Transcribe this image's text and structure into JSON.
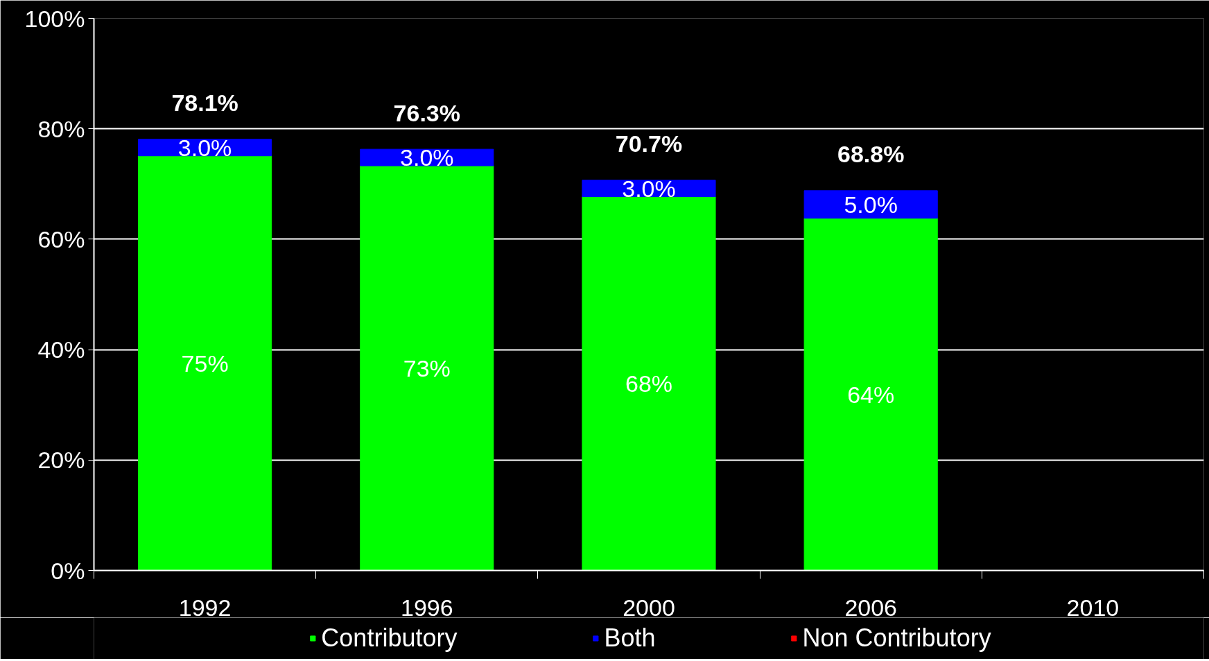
{
  "chart_data": {
    "type": "bar",
    "stacked": true,
    "categories": [
      "1992",
      "1996",
      "2000",
      "2006",
      "2010"
    ],
    "series": [
      {
        "name": "Contributory",
        "color": "#00ff00",
        "values": [
          75.1,
          73.3,
          67.7,
          63.8,
          null
        ],
        "value_labels": [
          "75%",
          "73%",
          "68%",
          "64%",
          null
        ]
      },
      {
        "name": "Both",
        "color": "#0000ff",
        "values": [
          3.0,
          3.0,
          3.0,
          5.0,
          null
        ],
        "value_labels": [
          "3.0%",
          "3.0%",
          "3.0%",
          "5.0%",
          null
        ]
      },
      {
        "name": "Non Contributory",
        "color": "#ff0000",
        "values": [
          null,
          null,
          null,
          null,
          null
        ]
      }
    ],
    "totals": [
      "78.1%",
      "76.3%",
      "70.7%",
      "68.8%",
      null
    ],
    "ylim": [
      0,
      100
    ],
    "yticks": [
      {
        "value": 0,
        "label": "0%"
      },
      {
        "value": 20,
        "label": "20%"
      },
      {
        "value": 40,
        "label": "40%"
      },
      {
        "value": 60,
        "label": "60%"
      },
      {
        "value": 80,
        "label": "80%"
      },
      {
        "value": 100,
        "label": "100%"
      }
    ],
    "grid": "y",
    "legend": "bottom"
  }
}
